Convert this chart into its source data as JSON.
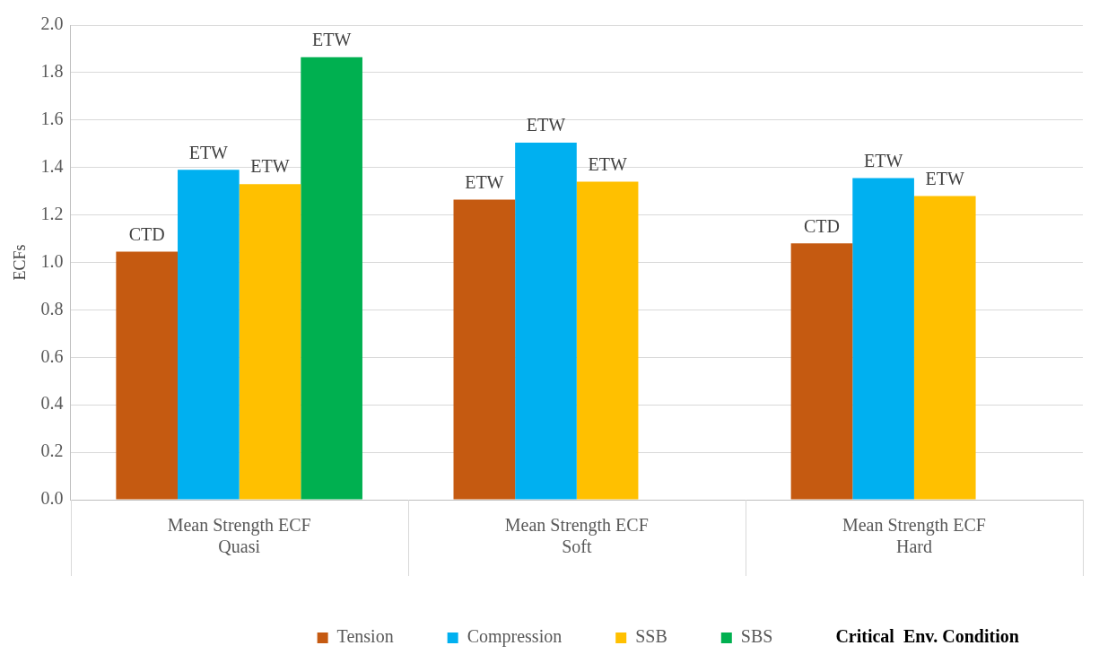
{
  "chart_data": {
    "type": "bar",
    "ylabel": "ECFs",
    "legend_title": "Critical  Env. Condition",
    "categories": [
      "Mean Strength ECF\nQuasi",
      "Mean Strength ECF\nSoft",
      "Mean Strength ECF\nHard"
    ],
    "series": [
      {
        "name": "Tension",
        "color": "#c55a11",
        "values": [
          1.045,
          1.265,
          1.08
        ],
        "value_labels": [
          "CTD",
          "ETW",
          "CTD"
        ]
      },
      {
        "name": "Compression",
        "color": "#00b0f0",
        "values": [
          1.39,
          1.505,
          1.355
        ],
        "value_labels": [
          "ETW",
          "ETW",
          "ETW"
        ]
      },
      {
        "name": "SSB",
        "color": "#ffc000",
        "values": [
          1.33,
          1.34,
          1.28
        ],
        "value_labels": [
          "ETW",
          "ETW",
          "ETW"
        ]
      },
      {
        "name": "SBS",
        "color": "#00b050",
        "values": [
          1.865,
          null,
          null
        ],
        "value_labels": [
          "ETW",
          null,
          null
        ]
      }
    ],
    "ylim": [
      0,
      2
    ],
    "yticks": [
      {
        "value": 0,
        "label": "0.0"
      },
      {
        "value": 0.2,
        "label": "0.2"
      },
      {
        "value": 0.4,
        "label": "0.4"
      },
      {
        "value": 0.6,
        "label": "0.6"
      },
      {
        "value": 0.8,
        "label": "0.8"
      },
      {
        "value": 1,
        "label": "1.0"
      },
      {
        "value": 1.2,
        "label": "1.2"
      },
      {
        "value": 1.4,
        "label": "1.4"
      },
      {
        "value": 1.6,
        "label": "1.6"
      },
      {
        "value": 1.8,
        "label": "1.8"
      },
      {
        "value": 2,
        "label": "2.0"
      }
    ],
    "grid": "y",
    "legend": "bottom"
  }
}
